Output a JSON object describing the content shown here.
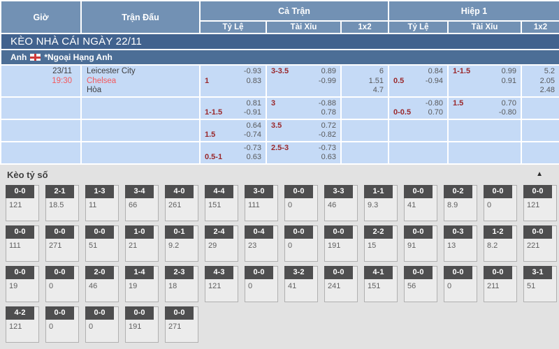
{
  "table": {
    "headers": {
      "time": "Giờ",
      "match": "Trận Đấu",
      "full_match": "Cả Trận",
      "first_half": "Hiệp 1",
      "sub": [
        "Tỷ Lệ",
        "Tài Xỉu",
        "1x2",
        "Tỷ Lệ",
        "Tài Xỉu",
        "1x2"
      ]
    },
    "date_banner": "KÈO NHÀ CÁI NGÀY 22/11",
    "league": {
      "country": "Anh",
      "flag": "england-flag",
      "name": "*Ngoại Hạng Anh"
    },
    "match": {
      "date": "23/11",
      "time": "19:30",
      "home": "Leicester City",
      "away": "Chelsea",
      "draw_label": "Hòa"
    },
    "odds_rows": [
      {
        "ft_hdp": {
          "label": "1",
          "label_on": "bottom",
          "odds_top": "-0.93",
          "odds_bottom": "0.83"
        },
        "ft_ou": {
          "label": "3-3.5",
          "label_on": "top",
          "odds_top": "0.89",
          "odds_bottom": "-0.99"
        },
        "ft_1x2": [
          "6",
          "1.51",
          "4.7"
        ],
        "h1_hdp": {
          "label": "0.5",
          "label_on": "bottom",
          "odds_top": "0.84",
          "odds_bottom": "-0.94"
        },
        "h1_ou": {
          "label": "1-1.5",
          "label_on": "top",
          "odds_top": "0.99",
          "odds_bottom": "0.91"
        },
        "h1_1x2": [
          "5.2",
          "2.05",
          "2.48"
        ]
      },
      {
        "ft_hdp": {
          "label": "1-1.5",
          "label_on": "bottom",
          "odds_top": "0.81",
          "odds_bottom": "-0.91"
        },
        "ft_ou": {
          "label": "3",
          "label_on": "top",
          "odds_top": "-0.88",
          "odds_bottom": "0.78"
        },
        "ft_1x2": null,
        "h1_hdp": {
          "label": "0-0.5",
          "label_on": "bottom",
          "odds_top": "-0.80",
          "odds_bottom": "0.70"
        },
        "h1_ou": {
          "label": "1.5",
          "label_on": "top",
          "odds_top": "0.70",
          "odds_bottom": "-0.80"
        },
        "h1_1x2": null
      },
      {
        "ft_hdp": {
          "label": "1.5",
          "label_on": "bottom",
          "odds_top": "0.64",
          "odds_bottom": "-0.74"
        },
        "ft_ou": {
          "label": "3.5",
          "label_on": "top",
          "odds_top": "0.72",
          "odds_bottom": "-0.82"
        },
        "ft_1x2": null,
        "h1_hdp": null,
        "h1_ou": null,
        "h1_1x2": null
      },
      {
        "ft_hdp": {
          "label": "0.5-1",
          "label_on": "bottom",
          "odds_top": "-0.73",
          "odds_bottom": "0.63"
        },
        "ft_ou": {
          "label": "2.5-3",
          "label_on": "top",
          "odds_top": "-0.73",
          "odds_bottom": "0.63"
        },
        "ft_1x2": null,
        "h1_hdp": null,
        "h1_ou": null,
        "h1_1x2": null
      }
    ]
  },
  "score_section": {
    "title": "Kèo tỷ số",
    "collapse_icon": "▲",
    "rows": [
      [
        {
          "score": "0-0",
          "odds": "121"
        },
        {
          "score": "2-1",
          "odds": "18.5"
        },
        {
          "score": "1-3",
          "odds": "11"
        },
        {
          "score": "3-4",
          "odds": "66"
        },
        {
          "score": "4-0",
          "odds": "261"
        },
        {
          "score": "4-4",
          "odds": "151"
        },
        {
          "score": "3-0",
          "odds": "111"
        },
        {
          "score": "0-0",
          "odds": "0"
        },
        {
          "score": "3-3",
          "odds": "46"
        },
        {
          "score": "1-1",
          "odds": "9.3"
        },
        {
          "score": "0-0",
          "odds": "41"
        },
        {
          "score": "0-2",
          "odds": "8.9"
        },
        {
          "score": "0-0",
          "odds": "0"
        },
        {
          "score": "0-0",
          "odds": "121"
        }
      ],
      [
        {
          "score": "0-0",
          "odds": "111"
        },
        {
          "score": "0-0",
          "odds": "271"
        },
        {
          "score": "0-0",
          "odds": "51"
        },
        {
          "score": "1-0",
          "odds": "21"
        },
        {
          "score": "0-1",
          "odds": "9.2"
        },
        {
          "score": "2-4",
          "odds": "29"
        },
        {
          "score": "0-4",
          "odds": "23"
        },
        {
          "score": "0-0",
          "odds": "0"
        },
        {
          "score": "0-0",
          "odds": "191"
        },
        {
          "score": "2-2",
          "odds": "15"
        },
        {
          "score": "0-0",
          "odds": "91"
        },
        {
          "score": "0-3",
          "odds": "13"
        },
        {
          "score": "1-2",
          "odds": "8.2"
        },
        {
          "score": "0-0",
          "odds": "221"
        }
      ],
      [
        {
          "score": "0-0",
          "odds": "19"
        },
        {
          "score": "0-0",
          "odds": "0"
        },
        {
          "score": "2-0",
          "odds": "46"
        },
        {
          "score": "1-4",
          "odds": "19"
        },
        {
          "score": "2-3",
          "odds": "18"
        },
        {
          "score": "4-3",
          "odds": "121"
        },
        {
          "score": "0-0",
          "odds": "0"
        },
        {
          "score": "3-2",
          "odds": "41"
        },
        {
          "score": "0-0",
          "odds": "241"
        },
        {
          "score": "4-1",
          "odds": "151"
        },
        {
          "score": "0-0",
          "odds": "56"
        },
        {
          "score": "0-0",
          "odds": "0"
        },
        {
          "score": "0-0",
          "odds": "211"
        },
        {
          "score": "3-1",
          "odds": "51"
        }
      ],
      [
        {
          "score": "4-2",
          "odds": "121"
        },
        {
          "score": "0-0",
          "odds": "0"
        },
        {
          "score": "0-0",
          "odds": "0"
        },
        {
          "score": "0-0",
          "odds": "191"
        },
        {
          "score": "0-0",
          "odds": "271"
        }
      ]
    ]
  },
  "colors": {
    "header_bg": "#7291b4",
    "banner_bg": "#41628e",
    "league_bg": "#4c6e96",
    "row_bg": "#c5daf6",
    "handicap_color": "#9a282b",
    "highlight_red": "#f4575b",
    "score_badge_bg": "#4e4e4f",
    "section_bg": "#e2e2e2"
  }
}
